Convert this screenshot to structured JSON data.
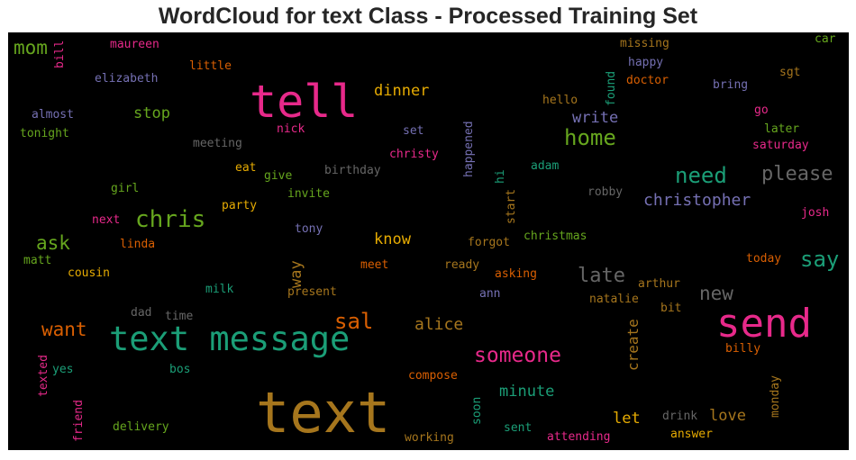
{
  "chart_data": {
    "type": "wordcloud",
    "title": "WordCloud for text Class - Processed Training Set",
    "background": "#000000",
    "colormap": "Dark2",
    "words": [
      {
        "text": "text",
        "color": "#a6761d"
      },
      {
        "text": "text message",
        "color": "#1b9e77"
      },
      {
        "text": "tell",
        "color": "#e7298a"
      },
      {
        "text": "send",
        "color": "#e7298a"
      },
      {
        "text": "chris",
        "color": "#66a61e"
      },
      {
        "text": "someone",
        "color": "#e7298a"
      },
      {
        "text": "need",
        "color": "#1b9e77"
      },
      {
        "text": "home",
        "color": "#66a61e"
      },
      {
        "text": "please",
        "color": "#666666"
      },
      {
        "text": "late",
        "color": "#666666"
      },
      {
        "text": "say",
        "color": "#1b9e77"
      },
      {
        "text": "sal",
        "color": "#d95f02"
      },
      {
        "text": "new",
        "color": "#666666"
      },
      {
        "text": "want",
        "color": "#d95f02"
      },
      {
        "text": "ask",
        "color": "#66a61e"
      },
      {
        "text": "mom",
        "color": "#66a61e"
      },
      {
        "text": "christopher",
        "color": "#7570b3"
      },
      {
        "text": "alice",
        "color": "#a6761d"
      },
      {
        "text": "minute",
        "color": "#1b9e77"
      },
      {
        "text": "dinner",
        "color": "#e6ab02"
      },
      {
        "text": "stop",
        "color": "#66a61e"
      },
      {
        "text": "write",
        "color": "#7570b3"
      },
      {
        "text": "know",
        "color": "#e6ab02"
      },
      {
        "text": "let",
        "color": "#e6ab02"
      },
      {
        "text": "love",
        "color": "#a6761d"
      },
      {
        "text": "create",
        "color": "#a6761d"
      },
      {
        "text": "way",
        "color": "#a6761d"
      },
      {
        "text": "happened",
        "color": "#7570b3"
      },
      {
        "text": "start",
        "color": "#a6761d"
      },
      {
        "text": "maureen",
        "color": "#e7298a"
      },
      {
        "text": "little",
        "color": "#d95f02"
      },
      {
        "text": "elizabeth",
        "color": "#7570b3"
      },
      {
        "text": "almost",
        "color": "#7570b3"
      },
      {
        "text": "tonight",
        "color": "#66a61e"
      },
      {
        "text": "meeting",
        "color": "#666666"
      },
      {
        "text": "nick",
        "color": "#e7298a"
      },
      {
        "text": "set",
        "color": "#7570b3"
      },
      {
        "text": "christy",
        "color": "#e7298a"
      },
      {
        "text": "eat",
        "color": "#e6ab02"
      },
      {
        "text": "give",
        "color": "#66a61e"
      },
      {
        "text": "birthday",
        "color": "#666666"
      },
      {
        "text": "invite",
        "color": "#66a61e"
      },
      {
        "text": "girl",
        "color": "#66a61e"
      },
      {
        "text": "party",
        "color": "#e6ab02"
      },
      {
        "text": "next",
        "color": "#e7298a"
      },
      {
        "text": "linda",
        "color": "#d95f02"
      },
      {
        "text": "tony",
        "color": "#7570b3"
      },
      {
        "text": "matt",
        "color": "#66a61e"
      },
      {
        "text": "cousin",
        "color": "#e6ab02"
      },
      {
        "text": "milk",
        "color": "#1b9e77"
      },
      {
        "text": "present",
        "color": "#a6761d"
      },
      {
        "text": "meet",
        "color": "#d95f02"
      },
      {
        "text": "ready",
        "color": "#a6761d"
      },
      {
        "text": "forgot",
        "color": "#a6761d"
      },
      {
        "text": "christmas",
        "color": "#66a61e"
      },
      {
        "text": "asking",
        "color": "#d95f02"
      },
      {
        "text": "ann",
        "color": "#7570b3"
      },
      {
        "text": "dad",
        "color": "#666666"
      },
      {
        "text": "time",
        "color": "#666666"
      },
      {
        "text": "compose",
        "color": "#d95f02"
      },
      {
        "text": "yes",
        "color": "#1b9e77"
      },
      {
        "text": "bos",
        "color": "#1b9e77"
      },
      {
        "text": "delivery",
        "color": "#66a61e"
      },
      {
        "text": "working",
        "color": "#a6761d"
      },
      {
        "text": "sent",
        "color": "#1b9e77"
      },
      {
        "text": "attending",
        "color": "#e7298a"
      },
      {
        "text": "drink",
        "color": "#666666"
      },
      {
        "text": "answer",
        "color": "#e6ab02"
      },
      {
        "text": "missing",
        "color": "#a6761d"
      },
      {
        "text": "car",
        "color": "#66a61e"
      },
      {
        "text": "happy",
        "color": "#7570b3"
      },
      {
        "text": "sgt",
        "color": "#a6761d"
      },
      {
        "text": "doctor",
        "color": "#d95f02"
      },
      {
        "text": "bring",
        "color": "#7570b3"
      },
      {
        "text": "hello",
        "color": "#a6761d"
      },
      {
        "text": "go",
        "color": "#e7298a"
      },
      {
        "text": "later",
        "color": "#66a61e"
      },
      {
        "text": "saturday",
        "color": "#e7298a"
      },
      {
        "text": "adam",
        "color": "#1b9e77"
      },
      {
        "text": "robby",
        "color": "#666666"
      },
      {
        "text": "josh",
        "color": "#e7298a"
      },
      {
        "text": "today",
        "color": "#d95f02"
      },
      {
        "text": "arthur",
        "color": "#a6761d"
      },
      {
        "text": "natalie",
        "color": "#a6761d"
      },
      {
        "text": "bit",
        "color": "#a6761d"
      },
      {
        "text": "billy",
        "color": "#d95f02"
      },
      {
        "text": "soon",
        "color": "#1b9e77"
      },
      {
        "text": "bill",
        "color": "#e7298a"
      },
      {
        "text": "found",
        "color": "#1b9e77"
      },
      {
        "text": "hi",
        "color": "#1b9e77"
      },
      {
        "text": "monday",
        "color": "#a6761d"
      },
      {
        "text": "friend",
        "color": "#e7298a"
      },
      {
        "text": "texted",
        "color": "#e7298a"
      }
    ]
  }
}
